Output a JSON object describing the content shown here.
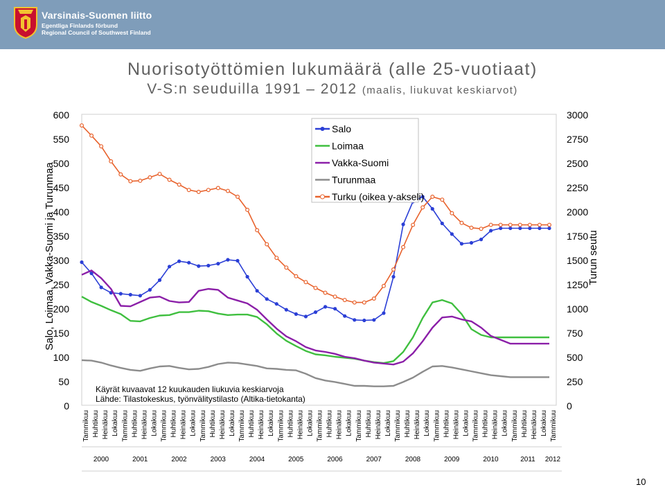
{
  "header": {
    "org_name": "Varsinais-Suomen liitto",
    "org_sub_1": "Egentliga Finlands förbund",
    "org_sub_2": "Regional Council of Southwest Finland",
    "brand_color": "#7f9dba"
  },
  "title_line_1": "Nuorisotyöttömien lukumäärä (alle 25-vuotiaat)",
  "title_line_2": "V-S:n seuduilla 1991 – 2012",
  "title_line_2_sub": "(maalis, liukuvat keskiarvot)",
  "page_number": "10",
  "chart_data": {
    "type": "line",
    "title": "Nuorisotyöttömien lukumäärä (alle 25-vuotiaat) V-S:n seuduilla 1991 – 2012",
    "ylabel_left": "Salo, Loimaa, Vakka-Suomi ja Turunmaa",
    "ylabel_right": "Turun seutu",
    "ylim_left": [
      0,
      600
    ],
    "ylim_right": [
      0,
      3000
    ],
    "yticks_left": [
      "0",
      "50",
      "100",
      "150",
      "200",
      "250",
      "300",
      "350",
      "400",
      "450",
      "500",
      "550",
      "600"
    ],
    "yticks_right": [
      "0",
      "250",
      "500",
      "750",
      "1000",
      "1250",
      "1500",
      "1750",
      "2000",
      "2250",
      "2500",
      "2750",
      "3000"
    ],
    "month_labels": [
      "Tammikuu",
      "Huhtikuu",
      "Heinäkuu",
      "Lokakuu"
    ],
    "year_labels": [
      "2000",
      "2001",
      "2002",
      "2003",
      "2004",
      "2005",
      "2006",
      "2007",
      "2008",
      "2009",
      "2010",
      "2011",
      "2012"
    ],
    "x_start": 2000.0,
    "x_end": 2012.0,
    "legend_position": "top-center",
    "annotation_line_1": "Käyrät kuvaavat 12 kuukauden liukuvia keskiarvoja",
    "annotation_line_2": "Lähde: Tilastokeskus, työnvälitystilasto (Altika-tietokanta)",
    "series": [
      {
        "name": "Salo",
        "color": "#2b3fd6",
        "axis": "left",
        "marker": "dot",
        "x": [
          2000.0,
          2000.25,
          2000.5,
          2000.75,
          2001.0,
          2001.25,
          2001.5,
          2001.75,
          2002.0,
          2002.25,
          2002.5,
          2002.75,
          2003.0,
          2003.25,
          2003.5,
          2003.75,
          2004.0,
          2004.25,
          2004.5,
          2004.75,
          2005.0,
          2005.25,
          2005.5,
          2005.75,
          2006.0,
          2006.25,
          2006.5,
          2006.75,
          2007.0,
          2007.25,
          2007.5,
          2007.75,
          2008.0,
          2008.25,
          2008.5,
          2008.75,
          2009.0,
          2009.25,
          2009.5,
          2009.75,
          2010.0,
          2010.25,
          2010.5,
          2010.75,
          2011.0,
          2011.25,
          2011.5,
          2011.75,
          2012.0
        ],
        "values": [
          295,
          272,
          243,
          232,
          230,
          228,
          226,
          238,
          258,
          286,
          297,
          294,
          287,
          288,
          292,
          300,
          298,
          265,
          236,
          219,
          209,
          197,
          188,
          183,
          192,
          203,
          199,
          184,
          176,
          175,
          176,
          190,
          265,
          373,
          420,
          430,
          405,
          375,
          353,
          333,
          335,
          342,
          360,
          365,
          365,
          365,
          365,
          365,
          365
        ]
      },
      {
        "name": "Loimaa",
        "color": "#3fbf3f",
        "axis": "left",
        "marker": "none",
        "x": [
          2000.0,
          2000.25,
          2000.5,
          2000.75,
          2001.0,
          2001.25,
          2001.5,
          2001.75,
          2002.0,
          2002.25,
          2002.5,
          2002.75,
          2003.0,
          2003.25,
          2003.5,
          2003.75,
          2004.0,
          2004.25,
          2004.5,
          2004.75,
          2005.0,
          2005.25,
          2005.5,
          2005.75,
          2006.0,
          2006.25,
          2006.5,
          2006.75,
          2007.0,
          2007.25,
          2007.5,
          2007.75,
          2008.0,
          2008.25,
          2008.5,
          2008.75,
          2009.0,
          2009.25,
          2009.5,
          2009.75,
          2010.0,
          2010.25,
          2010.5,
          2010.75,
          2011.0,
          2011.25,
          2011.5,
          2011.75,
          2012.0
        ],
        "values": [
          224,
          213,
          205,
          196,
          188,
          174,
          173,
          180,
          185,
          186,
          192,
          192,
          195,
          194,
          189,
          186,
          187,
          187,
          182,
          167,
          148,
          133,
          122,
          112,
          105,
          103,
          100,
          98,
          96,
          92,
          89,
          87,
          91,
          110,
          140,
          180,
          212,
          217,
          210,
          188,
          157,
          145,
          140,
          140,
          140,
          140,
          140,
          140,
          140
        ]
      },
      {
        "name": "Vakka-Suomi",
        "color": "#8b1fa8",
        "axis": "left",
        "marker": "none",
        "x": [
          2000.0,
          2000.25,
          2000.5,
          2000.75,
          2001.0,
          2001.25,
          2001.5,
          2001.75,
          2002.0,
          2002.25,
          2002.5,
          2002.75,
          2003.0,
          2003.25,
          2003.5,
          2003.75,
          2004.0,
          2004.25,
          2004.5,
          2004.75,
          2005.0,
          2005.25,
          2005.5,
          2005.75,
          2006.0,
          2006.25,
          2006.5,
          2006.75,
          2007.0,
          2007.25,
          2007.5,
          2007.75,
          2008.0,
          2008.25,
          2008.5,
          2008.75,
          2009.0,
          2009.25,
          2009.5,
          2009.75,
          2010.0,
          2010.25,
          2010.5,
          2010.75,
          2011.0,
          2011.25,
          2011.5,
          2011.75,
          2012.0
        ],
        "values": [
          269,
          278,
          262,
          240,
          205,
          204,
          213,
          222,
          224,
          215,
          212,
          213,
          236,
          240,
          238,
          222,
          216,
          210,
          197,
          177,
          158,
          142,
          132,
          120,
          113,
          110,
          106,
          100,
          97,
          92,
          88,
          86,
          84,
          90,
          107,
          132,
          160,
          181,
          183,
          177,
          173,
          160,
          143,
          135,
          127,
          127,
          127,
          127,
          127
        ]
      },
      {
        "name": "Turunmaa",
        "color": "#8c8c8c",
        "axis": "left",
        "marker": "none",
        "x": [
          2000.0,
          2000.25,
          2000.5,
          2000.75,
          2001.0,
          2001.25,
          2001.5,
          2001.75,
          2002.0,
          2002.25,
          2002.5,
          2002.75,
          2003.0,
          2003.25,
          2003.5,
          2003.75,
          2004.0,
          2004.25,
          2004.5,
          2004.75,
          2005.0,
          2005.25,
          2005.5,
          2005.75,
          2006.0,
          2006.25,
          2006.5,
          2006.75,
          2007.0,
          2007.25,
          2007.5,
          2007.75,
          2008.0,
          2008.25,
          2008.5,
          2008.75,
          2009.0,
          2009.25,
          2009.5,
          2009.75,
          2010.0,
          2010.25,
          2010.5,
          2010.75,
          2011.0,
          2011.25,
          2011.5,
          2011.75,
          2012.0
        ],
        "values": [
          93,
          92,
          88,
          82,
          77,
          73,
          71,
          76,
          80,
          81,
          77,
          74,
          75,
          79,
          85,
          88,
          87,
          84,
          81,
          76,
          75,
          73,
          72,
          65,
          56,
          51,
          48,
          44,
          40,
          40,
          39,
          39,
          40,
          48,
          57,
          69,
          80,
          81,
          78,
          74,
          70,
          66,
          62,
          60,
          58,
          58,
          58,
          58,
          58
        ]
      },
      {
        "name": "Turku (oikea y-akseli)",
        "color": "#e8622c",
        "axis": "right",
        "marker": "circle",
        "x": [
          2000.0,
          2000.25,
          2000.5,
          2000.75,
          2001.0,
          2001.25,
          2001.5,
          2001.75,
          2002.0,
          2002.25,
          2002.5,
          2002.75,
          2003.0,
          2003.25,
          2003.5,
          2003.75,
          2004.0,
          2004.25,
          2004.5,
          2004.75,
          2005.0,
          2005.25,
          2005.5,
          2005.75,
          2006.0,
          2006.25,
          2006.5,
          2006.75,
          2007.0,
          2007.25,
          2007.5,
          2007.75,
          2008.0,
          2008.25,
          2008.5,
          2008.75,
          2009.0,
          2009.25,
          2009.5,
          2009.75,
          2010.0,
          2010.25,
          2010.5,
          2010.75,
          2011.0,
          2011.25,
          2011.5,
          2011.75,
          2012.0
        ],
        "values": [
          2885,
          2780,
          2670,
          2515,
          2380,
          2310,
          2315,
          2350,
          2385,
          2325,
          2275,
          2220,
          2200,
          2220,
          2240,
          2210,
          2150,
          2015,
          1805,
          1660,
          1520,
          1420,
          1330,
          1270,
          1210,
          1160,
          1120,
          1085,
          1060,
          1060,
          1100,
          1230,
          1400,
          1630,
          1860,
          2040,
          2150,
          2120,
          1980,
          1880,
          1830,
          1820,
          1860,
          1860,
          1860,
          1860,
          1860,
          1860,
          1860
        ]
      }
    ]
  }
}
